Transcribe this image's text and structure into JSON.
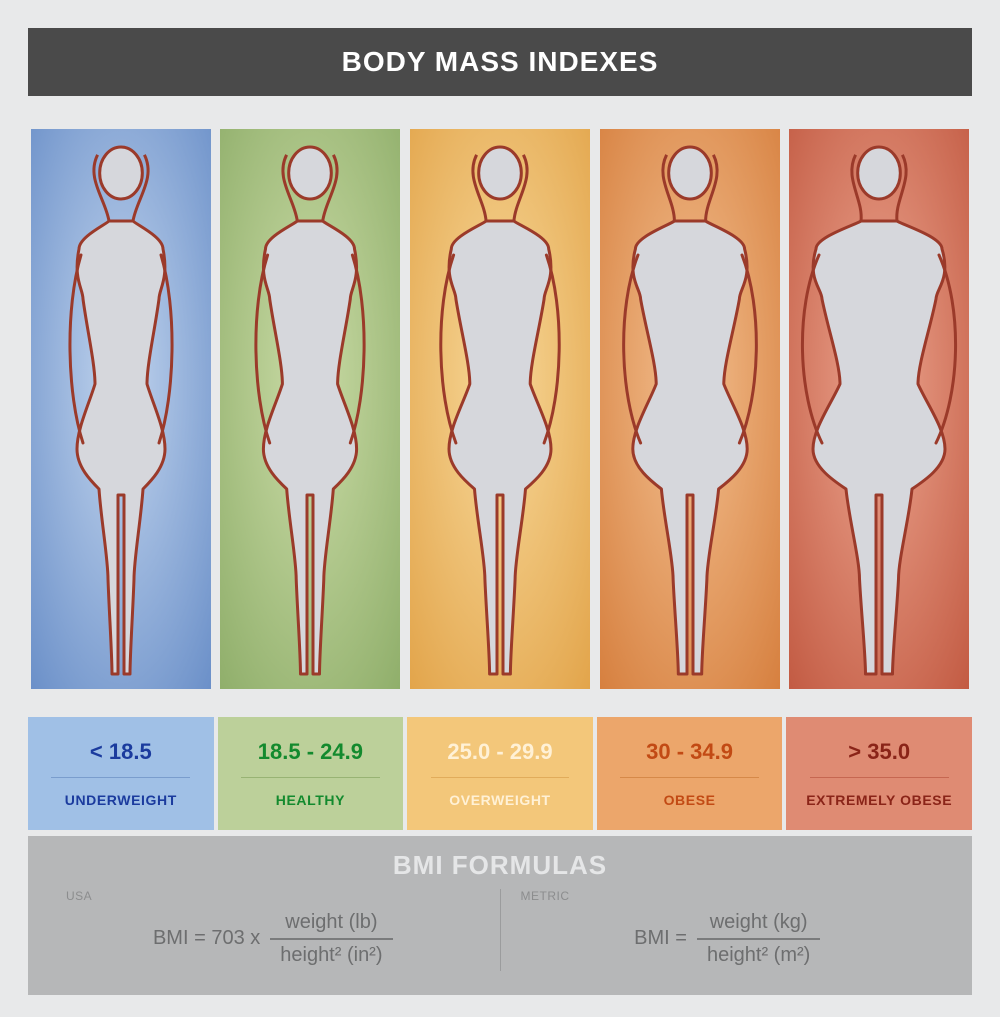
{
  "title": "BODY MASS INDEXES",
  "background": "#e8e9ea",
  "header_bg": "#4a4a4a",
  "header_color": "#ffffff",
  "figure_fill": "#d6d7dc",
  "figure_stroke": "#9b3a2a",
  "panels": [
    {
      "id": "underweight",
      "range": "< 18.5",
      "label": "UNDERWEIGHT",
      "text_color": "#1b3b9e",
      "info_bg": "#a0c0e6",
      "grad_inner": "#c2d5ee",
      "grad_outer": "#6a8fc8",
      "divider": "#5b7fb8",
      "body_width": 1.0
    },
    {
      "id": "healthy",
      "range": "18.5 - 24.9",
      "label": "HEALTHY",
      "text_color": "#138a2e",
      "info_bg": "#bcd09a",
      "grad_inner": "#cbdca7",
      "grad_outer": "#8fae6a",
      "divider": "#7a9b56",
      "body_width": 1.06
    },
    {
      "id": "overweight",
      "range": "25.0 - 29.9",
      "label": "OVERWEIGHT",
      "text_color": "#fff1d6",
      "info_bg": "#f3c77a",
      "grad_inner": "#f8d99a",
      "grad_outer": "#e2a44a",
      "divider": "#d29642",
      "body_width": 1.16
    },
    {
      "id": "obese",
      "range": "30 - 34.9",
      "label": "OBESE",
      "text_color": "#c24a14",
      "info_bg": "#eca66b",
      "grad_inner": "#f3c090",
      "grad_outer": "#d67f3e",
      "divider": "#c4712e",
      "body_width": 1.3
    },
    {
      "id": "extremely-obese",
      "range": "> 35.0",
      "label": "EXTREMELY OBESE",
      "text_color": "#8a2418",
      "info_bg": "#df8b73",
      "grad_inner": "#eda690",
      "grad_outer": "#c25a42",
      "divider": "#b04a34",
      "body_width": 1.5
    }
  ],
  "formulas": {
    "title": "BMI FORMULAS",
    "bg": "#b6b7b8",
    "title_color": "#e5e6e7",
    "left": {
      "tag": "USA",
      "prefix": "BMI  =  703  x",
      "numerator": "weight (lb)",
      "denominator": "height² (in²)"
    },
    "right": {
      "tag": "METRIC",
      "prefix": "BMI  =",
      "numerator": "weight (kg)",
      "denominator": "height² (m²)"
    }
  }
}
